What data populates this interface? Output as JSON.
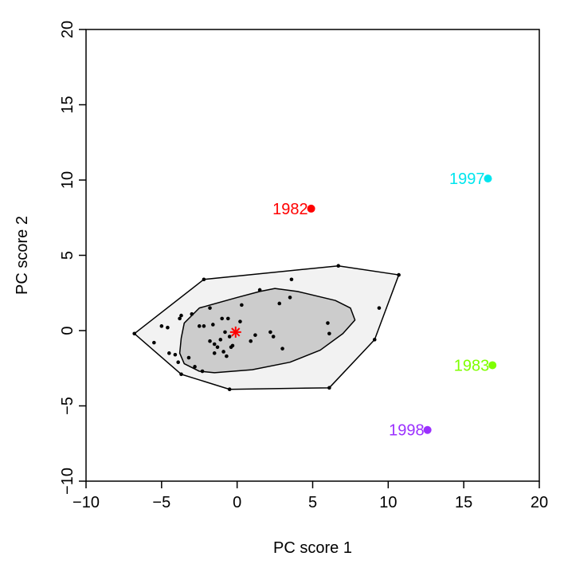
{
  "chart_data": {
    "type": "scatter",
    "title": "",
    "xlabel": "PC score 1",
    "ylabel": "PC score 2",
    "xlim": [
      -10,
      20
    ],
    "ylim": [
      -10,
      20
    ],
    "xticks": [
      -10,
      -5,
      0,
      5,
      10,
      15,
      20
    ],
    "yticks": [
      -10,
      -5,
      0,
      5,
      10,
      15,
      20
    ],
    "xtick_labels": [
      "−10",
      "−5",
      "0",
      "5",
      "10",
      "15",
      "20"
    ],
    "ytick_labels": [
      "−10",
      "−5",
      "0",
      "5",
      "10",
      "15",
      "20"
    ],
    "grid": false,
    "fence": {
      "fill": "#f2f2f2",
      "points": [
        [
          -6.8,
          -0.2
        ],
        [
          -2.2,
          3.4
        ],
        [
          6.7,
          4.3
        ],
        [
          10.7,
          3.7
        ],
        [
          9.1,
          -0.6
        ],
        [
          6.1,
          -3.8
        ],
        [
          -0.5,
          -3.9
        ],
        [
          -3.7,
          -2.9
        ]
      ]
    },
    "bag": {
      "fill": "#cccccc",
      "points": [
        [
          -3.5,
          0.5
        ],
        [
          -2.5,
          1.5
        ],
        [
          0.0,
          2.2
        ],
        [
          1.5,
          2.6
        ],
        [
          2.5,
          2.8
        ],
        [
          4.0,
          2.6
        ],
        [
          6.5,
          2.0
        ],
        [
          7.5,
          1.5
        ],
        [
          7.8,
          0.7
        ],
        [
          7.0,
          -0.2
        ],
        [
          5.5,
          -1.3
        ],
        [
          3.5,
          -2.1
        ],
        [
          1.0,
          -2.6
        ],
        [
          -1.5,
          -2.8
        ],
        [
          -2.5,
          -2.7
        ],
        [
          -3.5,
          -2.2
        ],
        [
          -3.8,
          -1.5
        ],
        [
          -3.7,
          -0.5
        ]
      ]
    },
    "median": {
      "x": -0.1,
      "y": -0.1,
      "color": "#ff0000"
    },
    "points": {
      "color": "#000000",
      "x": [
        -6.8,
        -2.2,
        6.7,
        10.7,
        9.1,
        6.1,
        -0.5,
        -3.7,
        -5.0,
        -4.6,
        -5.5,
        -4.5,
        -4.1,
        -3.9,
        -3.8,
        -3.7,
        -3.2,
        -3.0,
        -2.8,
        -2.5,
        -2.3,
        -2.2,
        -1.8,
        -1.6,
        -1.5,
        -1.3,
        -1.1,
        -1.0,
        -0.9,
        -0.8,
        -0.7,
        -0.6,
        -0.5,
        -0.4,
        -0.3,
        0.2,
        0.3,
        1.2,
        1.5,
        2.2,
        2.4,
        2.8,
        3.0,
        3.5,
        3.6,
        6.0,
        6.1,
        9.4,
        -1.5,
        -1.8,
        0.9
      ],
      "y": [
        -0.2,
        3.4,
        4.3,
        3.7,
        -0.6,
        -3.8,
        -3.9,
        -2.9,
        0.3,
        0.2,
        -0.8,
        -1.5,
        -1.6,
        -2.1,
        0.8,
        1.0,
        -1.8,
        1.1,
        -2.4,
        0.3,
        -2.7,
        0.3,
        1.5,
        0.4,
        -0.9,
        -1.1,
        -0.6,
        0.8,
        -1.4,
        -0.1,
        -1.7,
        0.8,
        -0.4,
        -1.1,
        -1.0,
        0.6,
        1.7,
        -0.3,
        2.7,
        -0.1,
        -0.4,
        1.8,
        -1.2,
        2.2,
        3.4,
        0.5,
        -0.2,
        1.5,
        -1.5,
        -0.7,
        -0.7
      ]
    },
    "outliers": [
      {
        "label": "1982",
        "x": 4.9,
        "y": 8.1,
        "color": "#ff0000"
      },
      {
        "label": "1997",
        "x": 16.6,
        "y": 10.1,
        "color": "#00e5ee"
      },
      {
        "label": "1983",
        "x": 16.9,
        "y": -2.3,
        "color": "#7fff00"
      },
      {
        "label": "1998",
        "x": 12.6,
        "y": -6.6,
        "color": "#9b30ff"
      }
    ]
  }
}
